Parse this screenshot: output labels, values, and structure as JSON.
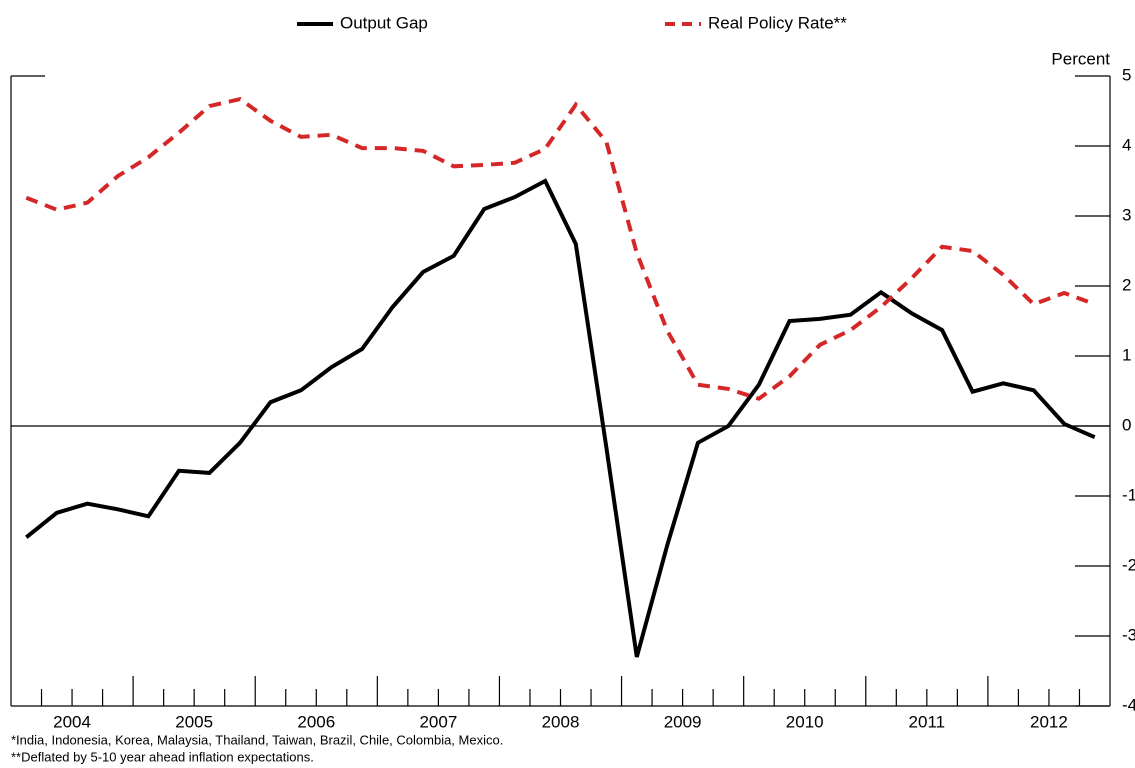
{
  "chart_data": {
    "type": "line",
    "y_label": "Percent",
    "notes": [
      "*India, Indonesia, Korea, Malaysia, Thailand, Taiwan, Brazil, Chile, Colombia, Mexico.",
      "**Deflated by 5-10 year ahead inflation expectations."
    ],
    "x": [
      2004.125,
      2004.375,
      2004.625,
      2004.875,
      2005.125,
      2005.375,
      2005.625,
      2005.875,
      2006.125,
      2006.375,
      2006.625,
      2006.875,
      2007.125,
      2007.375,
      2007.625,
      2007.875,
      2008.125,
      2008.375,
      2008.625,
      2008.875,
      2009.125,
      2009.375,
      2009.625,
      2009.875,
      2010.125,
      2010.375,
      2010.625,
      2010.875,
      2011.125,
      2011.375,
      2011.625,
      2011.875,
      2012.125,
      2012.375,
      2012.625,
      2012.875
    ],
    "series": [
      {
        "name": "Output Gap",
        "color": "#000000",
        "dash": false,
        "values": [
          -1.59,
          -1.24,
          -1.11,
          -1.19,
          -1.29,
          -0.64,
          -0.67,
          -0.24,
          0.34,
          0.51,
          0.84,
          1.1,
          1.7,
          2.2,
          2.43,
          3.1,
          3.27,
          3.5,
          2.6,
          -0.3,
          -3.3,
          -1.7,
          -0.24,
          0.0,
          0.59,
          1.5,
          1.53,
          1.59,
          1.91,
          1.61,
          1.37,
          0.49,
          0.61,
          0.51,
          0.03,
          -0.16
        ]
      },
      {
        "name": "Real Policy Rate**",
        "color": "#d62728",
        "dash": true,
        "values": [
          3.26,
          3.09,
          3.19,
          3.57,
          3.84,
          4.19,
          4.57,
          4.67,
          4.36,
          4.13,
          4.16,
          3.97,
          3.97,
          3.93,
          3.71,
          3.73,
          3.76,
          3.96,
          4.59,
          4.06,
          2.47,
          1.36,
          0.59,
          0.53,
          0.39,
          0.71,
          1.16,
          1.37,
          1.7,
          2.11,
          2.56,
          2.5,
          2.16,
          1.74,
          1.9,
          1.74
        ]
      }
    ],
    "xlim": [
      2004,
      2013
    ],
    "xticks": [
      {
        "value": 2004.5,
        "label": "2004"
      },
      {
        "value": 2005.5,
        "label": "2005"
      },
      {
        "value": 2006.5,
        "label": "2006"
      },
      {
        "value": 2007.5,
        "label": "2007"
      },
      {
        "value": 2008.5,
        "label": "2008"
      },
      {
        "value": 2009.5,
        "label": "2009"
      },
      {
        "value": 2010.5,
        "label": "2010"
      },
      {
        "value": 2011.5,
        "label": "2011"
      },
      {
        "value": 2012.5,
        "label": "2012"
      }
    ],
    "xminor_ticks": [
      2004.25,
      2004.5,
      2004.75,
      2005,
      2005.25,
      2005.5,
      2005.75,
      2006,
      2006.25,
      2006.5,
      2006.75,
      2007,
      2007.25,
      2007.5,
      2007.75,
      2008,
      2008.25,
      2008.5,
      2008.75,
      2009,
      2009.25,
      2009.5,
      2009.75,
      2010,
      2010.25,
      2010.5,
      2010.75,
      2011,
      2011.25,
      2011.5,
      2011.75,
      2012,
      2012.25,
      2012.5,
      2012.75
    ],
    "ylim": [
      -4,
      5
    ],
    "yticks": [
      5,
      4,
      3,
      2,
      1,
      0,
      -1,
      -2,
      -3,
      -4
    ],
    "zero_line": true
  }
}
